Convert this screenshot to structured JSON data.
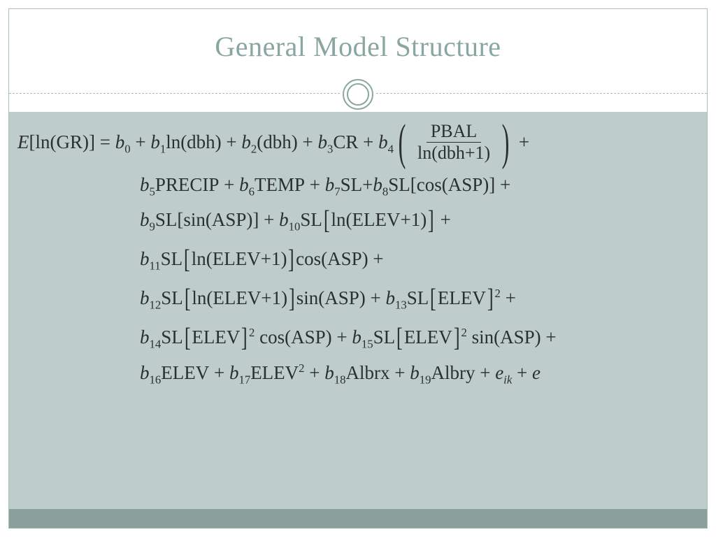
{
  "slide": {
    "title": "General Model Structure",
    "colors": {
      "title_color": "#8aa6a0",
      "border_color": "#a9bdb9",
      "content_bg": "#bfcdca",
      "footer_bg": "#8aa09b",
      "text_color": "#2a2f33",
      "page_bg": "#ffffff"
    },
    "typography": {
      "title_fontsize": 40,
      "equation_fontsize": 27,
      "font_family": "Georgia, Times New Roman, serif"
    },
    "equation": {
      "lhs": "E[ln(GR)]",
      "coef_prefix": "b",
      "terms": [
        {
          "idx": 0,
          "expr": ""
        },
        {
          "idx": 1,
          "expr": "ln(dbh)"
        },
        {
          "idx": 2,
          "expr": "(dbh)"
        },
        {
          "idx": 3,
          "expr": "CR"
        },
        {
          "idx": 4,
          "expr_frac": {
            "num": "PBAL",
            "den": "ln(dbh+1)"
          }
        },
        {
          "idx": 5,
          "expr": "PRECIP"
        },
        {
          "idx": 6,
          "expr": "TEMP"
        },
        {
          "idx": 7,
          "expr": "SL"
        },
        {
          "idx": 8,
          "expr": "SL[cos(ASP)]"
        },
        {
          "idx": 9,
          "expr": "SL[sin(ASP)]"
        },
        {
          "idx": 10,
          "expr": "SL[ln(ELEV+1)]"
        },
        {
          "idx": 11,
          "expr": "SL[ln(ELEV+1)]cos(ASP)"
        },
        {
          "idx": 12,
          "expr": "SL[ln(ELEV+1)]sin(ASP)"
        },
        {
          "idx": 13,
          "expr": "SL[ELEV]^2"
        },
        {
          "idx": 14,
          "expr": "SL[ELEV]^2 cos(ASP)"
        },
        {
          "idx": 15,
          "expr": "SL[ELEV]^2 sin(ASP)"
        },
        {
          "idx": 16,
          "expr": "ELEV"
        },
        {
          "idx": 17,
          "expr": "ELEV^2"
        },
        {
          "idx": 18,
          "expr": "Albrx"
        },
        {
          "idx": 19,
          "expr": "Albry"
        }
      ],
      "error_terms": [
        "e_ik",
        "e"
      ],
      "frac_num": "PBAL",
      "frac_den": "ln(dbh+1)"
    }
  }
}
